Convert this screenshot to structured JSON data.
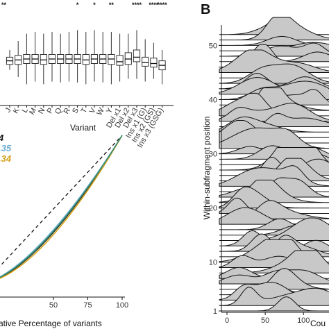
{
  "panel_b_letter": "B",
  "colors": {
    "ridge_fill": "#c8c8c8",
    "black": "#111111",
    "blue": "#6aaed6",
    "yellow": "#d4a017",
    "green": "#3a8f6e"
  },
  "chart_data": [
    {
      "type": "box",
      "xlabel": "Variant",
      "categories": [
        "J",
        "K",
        "L",
        "M",
        "N",
        "P",
        "Q",
        "R",
        "S",
        "T",
        "V",
        "W",
        "Y",
        "Del x1",
        "Del x2",
        "Del x3",
        "Ins x1 (G)",
        "Ins x2 (GS)",
        "Ins x3 (GSG)"
      ],
      "significance": [
        "",
        "",
        "",
        "",
        "",
        "",
        "",
        "",
        "*",
        "",
        "*",
        "",
        "**",
        "",
        "",
        "****",
        "",
        "****",
        "****"
      ],
      "top_left_marks": "**",
      "boxes": [
        {
          "lo": 0.38,
          "q1": 0.44,
          "med": 0.48,
          "q3": 0.52,
          "hi": 0.6
        },
        {
          "lo": 0.3,
          "q1": 0.44,
          "med": 0.49,
          "q3": 0.54,
          "hi": 0.7
        },
        {
          "lo": 0.22,
          "q1": 0.45,
          "med": 0.5,
          "q3": 0.55,
          "hi": 0.78
        },
        {
          "lo": 0.25,
          "q1": 0.45,
          "med": 0.5,
          "q3": 0.55,
          "hi": 0.8
        },
        {
          "lo": 0.22,
          "q1": 0.44,
          "med": 0.49,
          "q3": 0.55,
          "hi": 0.78
        },
        {
          "lo": 0.25,
          "q1": 0.45,
          "med": 0.5,
          "q3": 0.55,
          "hi": 0.8
        },
        {
          "lo": 0.24,
          "q1": 0.45,
          "med": 0.5,
          "q3": 0.55,
          "hi": 0.78
        },
        {
          "lo": 0.25,
          "q1": 0.45,
          "med": 0.5,
          "q3": 0.55,
          "hi": 0.8
        },
        {
          "lo": 0.24,
          "q1": 0.45,
          "med": 0.5,
          "q3": 0.55,
          "hi": 0.82
        },
        {
          "lo": 0.22,
          "q1": 0.44,
          "med": 0.49,
          "q3": 0.55,
          "hi": 0.8
        },
        {
          "lo": 0.25,
          "q1": 0.45,
          "med": 0.5,
          "q3": 0.55,
          "hi": 0.82
        },
        {
          "lo": 0.24,
          "q1": 0.45,
          "med": 0.5,
          "q3": 0.55,
          "hi": 0.8
        },
        {
          "lo": 0.22,
          "q1": 0.44,
          "med": 0.5,
          "q3": 0.55,
          "hi": 0.8
        },
        {
          "lo": 0.25,
          "q1": 0.43,
          "med": 0.47,
          "q3": 0.54,
          "hi": 0.78
        },
        {
          "lo": 0.28,
          "q1": 0.44,
          "med": 0.5,
          "q3": 0.57,
          "hi": 0.78
        },
        {
          "lo": 0.28,
          "q1": 0.47,
          "med": 0.52,
          "q3": 0.6,
          "hi": 0.82
        },
        {
          "lo": 0.25,
          "q1": 0.42,
          "med": 0.46,
          "q3": 0.52,
          "hi": 0.72
        },
        {
          "lo": 0.28,
          "q1": 0.41,
          "med": 0.45,
          "q3": 0.51,
          "hi": 0.68
        },
        {
          "lo": 0.22,
          "q1": 0.38,
          "med": 0.43,
          "q3": 0.48,
          "hi": 0.6
        }
      ]
    },
    {
      "type": "line",
      "xlabel": "ative Percentage of variants",
      "x_ticks": [
        50,
        75,
        100
      ],
      "xlim": [
        0,
        100
      ],
      "ylim": [
        0,
        100
      ],
      "legend_items": [
        {
          "text": "4",
          "color": "#111111"
        },
        {
          "text": ".35",
          "color": "#6aaed6"
        },
        {
          "text": ".34",
          "color": "#d4a017"
        }
      ],
      "diagonal": "dashed",
      "series": [
        {
          "color": "#111111",
          "exponent": 1.55
        },
        {
          "color": "#6aaed6",
          "exponent": 1.48
        },
        {
          "color": "#d4a017",
          "exponent": 1.62
        },
        {
          "color": "#3a8f6e",
          "exponent": 1.52
        }
      ]
    },
    {
      "type": "ridgeline",
      "ylabel": "Within-subfragment position",
      "xlabel": "Cou",
      "y_ticks": [
        1,
        10,
        20,
        30,
        40,
        50
      ],
      "x_ticks": [
        0,
        50,
        100
      ],
      "xlim": [
        0,
        140
      ],
      "positions": [
        1,
        52
      ],
      "fill": "#c8c8c8"
    }
  ]
}
